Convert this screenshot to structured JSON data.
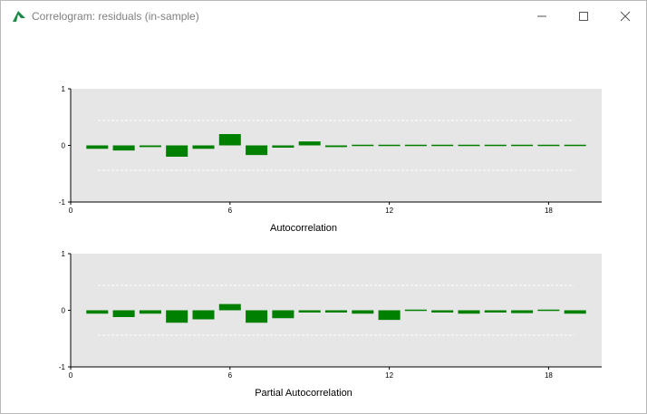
{
  "window": {
    "title": "Correlogram: residuals (in-sample)",
    "icon": "app-logo-icon",
    "controls": [
      "minimize-icon",
      "maximize-icon",
      "close-icon"
    ]
  },
  "colors": {
    "bar": "#008000",
    "plot_background": "#e6e6e6",
    "confidence_band": "#ffffff"
  },
  "chart_data": [
    {
      "type": "bar",
      "xlabel": "Autocorrelation",
      "ylabel": "",
      "x": [
        1,
        2,
        3,
        4,
        5,
        6,
        7,
        8,
        9,
        10,
        11,
        12,
        13,
        14,
        15,
        16,
        17,
        18,
        19
      ],
      "values": [
        -0.06,
        -0.09,
        -0.03,
        -0.2,
        -0.06,
        0.2,
        -0.17,
        -0.04,
        0.07,
        -0.03,
        0.02,
        -0.01,
        0.01,
        0.01,
        0.02,
        -0.01,
        -0.01,
        -0.01,
        0.01
      ],
      "xlim": [
        0,
        20
      ],
      "ylim": [
        -1,
        1
      ],
      "xticks": [
        0,
        6,
        12,
        18
      ],
      "xtick_labels": [
        "0",
        "6",
        "12",
        "18"
      ],
      "yticks": [
        -1,
        0,
        1
      ],
      "ytick_labels": [
        "-1",
        "0",
        "1"
      ],
      "confidence_band": 0.44,
      "grid": false
    },
    {
      "type": "bar",
      "xlabel": "Partial Autocorrelation",
      "ylabel": "",
      "x": [
        1,
        2,
        3,
        4,
        5,
        6,
        7,
        8,
        9,
        10,
        11,
        12,
        13,
        14,
        15,
        16,
        17,
        18,
        19
      ],
      "values": [
        -0.06,
        -0.12,
        -0.06,
        -0.22,
        -0.16,
        0.11,
        -0.22,
        -0.14,
        -0.04,
        -0.04,
        -0.06,
        -0.17,
        0.02,
        -0.04,
        -0.06,
        -0.04,
        -0.05,
        -0.01,
        -0.06
      ],
      "xlim": [
        0,
        20
      ],
      "ylim": [
        -1,
        1
      ],
      "xticks": [
        0,
        6,
        12,
        18
      ],
      "xtick_labels": [
        "0",
        "6",
        "12",
        "18"
      ],
      "yticks": [
        -1,
        0,
        1
      ],
      "ytick_labels": [
        "-1",
        "0",
        "1"
      ],
      "confidence_band": 0.44,
      "grid": false
    }
  ]
}
